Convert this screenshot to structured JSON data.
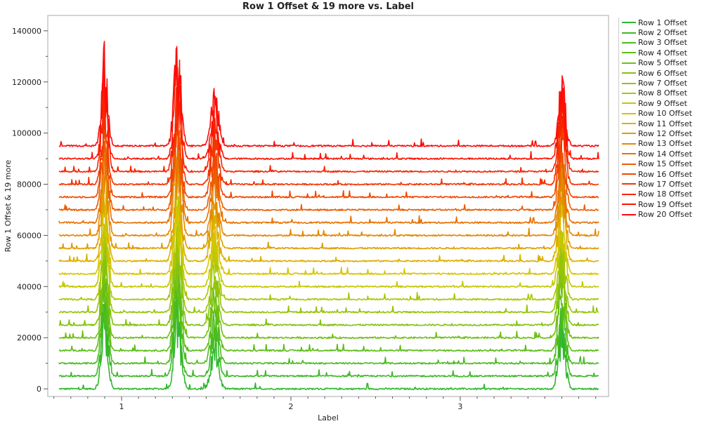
{
  "chart_data": {
    "type": "line",
    "title": "Row 1 Offset & 19 more vs. Label",
    "xlabel": "Label",
    "ylabel": "Row 1 Offset & 19 more",
    "xlim": [
      0.564,
      3.876
    ],
    "ylim": [
      -3000,
      146000
    ],
    "x_ticks": [
      1,
      2,
      3
    ],
    "x_tick_labels": [
      "1",
      "2",
      "3"
    ],
    "y_ticks": [
      0,
      20000,
      40000,
      60000,
      80000,
      100000,
      120000,
      140000
    ],
    "y_tick_labels": [
      "0",
      "20000",
      "40000",
      "60000",
      "80000",
      "100000",
      "120000",
      "140000"
    ],
    "x_range": [
      0.63,
      3.82
    ],
    "offset_step": 5000,
    "peaks": [
      {
        "center": 0.9,
        "height": 42000,
        "width": 0.018
      },
      {
        "center": 1.33,
        "height": 48000,
        "width": 0.02
      },
      {
        "center": 1.55,
        "height": 25000,
        "width": 0.022
      },
      {
        "center": 3.6,
        "height": 34000,
        "width": 0.02
      }
    ],
    "series": [
      {
        "name": "Row 1 Offset",
        "offset": 0,
        "color": "#2db82d"
      },
      {
        "name": "Row 2 Offset",
        "offset": 5000,
        "color": "#3cba25"
      },
      {
        "name": "Row 3 Offset",
        "offset": 10000,
        "color": "#4cbc1e"
      },
      {
        "name": "Row 4 Offset",
        "offset": 15000,
        "color": "#5cbe18"
      },
      {
        "name": "Row 5 Offset",
        "offset": 20000,
        "color": "#6fc012"
      },
      {
        "name": "Row 6 Offset",
        "offset": 25000,
        "color": "#82c20e"
      },
      {
        "name": "Row 7 Offset",
        "offset": 30000,
        "color": "#96c40a"
      },
      {
        "name": "Row 8 Offset",
        "offset": 35000,
        "color": "#aac606"
      },
      {
        "name": "Row 9 Offset",
        "offset": 40000,
        "color": "#c4c800"
      },
      {
        "name": "Row 10 Offset",
        "offset": 45000,
        "color": "#d8c400"
      },
      {
        "name": "Row 11 Offset",
        "offset": 50000,
        "color": "#dcb000"
      },
      {
        "name": "Row 12 Offset",
        "offset": 55000,
        "color": "#e09c00"
      },
      {
        "name": "Row 13 Offset",
        "offset": 60000,
        "color": "#e48800"
      },
      {
        "name": "Row 14 Offset",
        "offset": 65000,
        "color": "#e87200"
      },
      {
        "name": "Row 15 Offset",
        "offset": 70000,
        "color": "#ec5c00"
      },
      {
        "name": "Row 16 Offset",
        "offset": 75000,
        "color": "#f04800"
      },
      {
        "name": "Row 17 Offset",
        "offset": 80000,
        "color": "#f43400"
      },
      {
        "name": "Row 18 Offset",
        "offset": 85000,
        "color": "#f82400"
      },
      {
        "name": "Row 19 Offset",
        "offset": 90000,
        "color": "#fc1400"
      },
      {
        "name": "Row 20 Offset",
        "offset": 95000,
        "color": "#ff0a0a"
      }
    ],
    "grid": false,
    "legend": "right"
  }
}
